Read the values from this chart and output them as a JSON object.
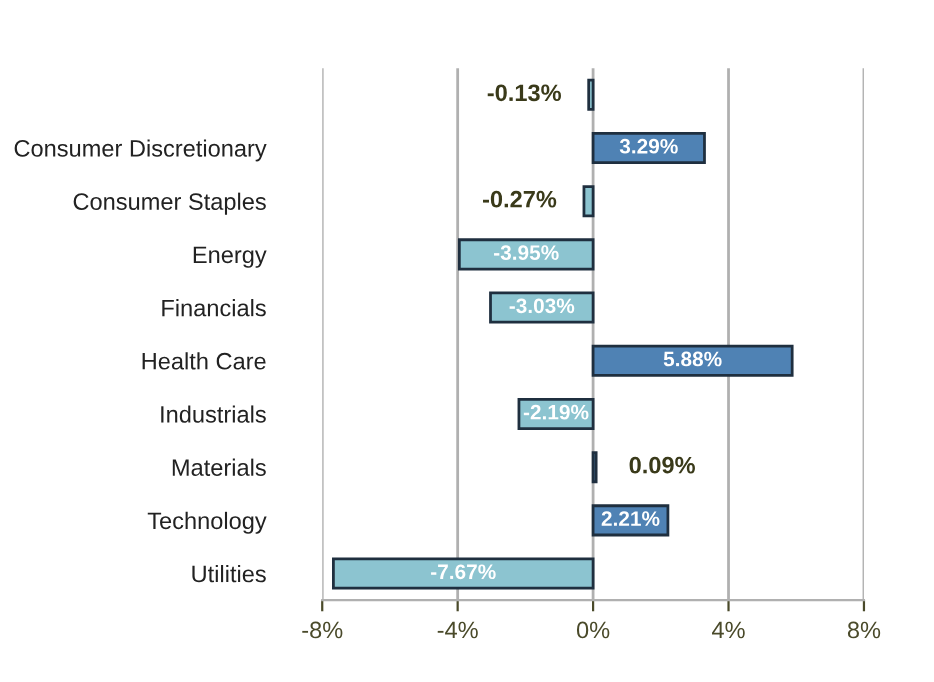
{
  "chart_data": {
    "type": "bar",
    "orientation": "horizontal",
    "categories": [
      null,
      "Consumer Discretionary",
      "Consumer Staples",
      "Energy",
      "Financials",
      "Health Care",
      "Industrials",
      "Materials",
      "Technology",
      "Utilities"
    ],
    "values": [
      -0.13,
      3.29,
      -0.27,
      -3.95,
      -3.03,
      5.88,
      -2.19,
      0.09,
      2.21,
      -7.67
    ],
    "colors": [
      "#8cc4d0",
      "#4f82b4",
      "#8cc4d0",
      "#8cc4d0",
      "#8cc4d0",
      "#4f82b4",
      "#8cc4d0",
      "#4f82b4",
      "#4f82b4",
      "#8cc4d0"
    ],
    "value_labels": [
      "-0.13%",
      "3.29%",
      "-0.27%",
      "-3.95%",
      "-3.03%",
      "5.88%",
      "-2.19%",
      "0.09%",
      "2.21%",
      "-7.67%"
    ],
    "xlim": [
      -8,
      8
    ],
    "xticks": [
      {
        "value": -8,
        "label": "-8%"
      },
      {
        "value": -4,
        "label": "-4%"
      },
      {
        "value": 0,
        "label": "0%"
      },
      {
        "value": 4,
        "label": "4%"
      },
      {
        "value": 8,
        "label": "8%"
      }
    ],
    "grid": "x",
    "legend": false
  }
}
